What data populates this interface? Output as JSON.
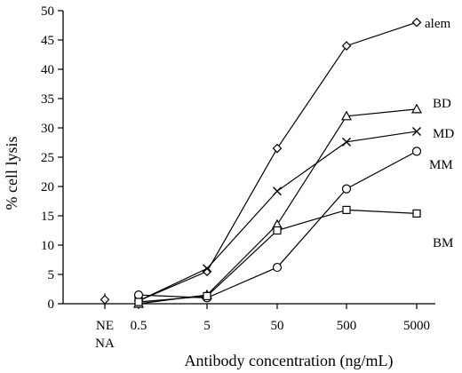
{
  "chart_data": {
    "type": "line",
    "xlabel": "Antibody concentration (ng/mL)",
    "ylabel": "% cell lysis",
    "ylim": [
      0,
      50
    ],
    "yticks": [
      0,
      5,
      10,
      15,
      20,
      25,
      30,
      35,
      40,
      45,
      50
    ],
    "categories": [
      "NE NA",
      "0.5",
      "5",
      "50",
      "500",
      "5000"
    ],
    "category_label_lines": [
      [
        "NE",
        "NA"
      ],
      [
        "0.5"
      ],
      [
        "5"
      ],
      [
        "50"
      ],
      [
        "500"
      ],
      [
        "5000"
      ]
    ],
    "grid": false,
    "legend": "inline labels at right end of each series",
    "series": [
      {
        "name": "alem",
        "marker": "diamond",
        "values": [
          null,
          0.5,
          5.5,
          26.5,
          44,
          48
        ]
      },
      {
        "name": "BD",
        "marker": "triangle",
        "values": [
          null,
          0,
          1.5,
          13.5,
          32,
          33.2
        ]
      },
      {
        "name": "MD",
        "marker": "x",
        "values": [
          null,
          0.5,
          6,
          19.2,
          27.6,
          29.4
        ]
      },
      {
        "name": "MM",
        "marker": "circle",
        "values": [
          null,
          1.5,
          1,
          6.2,
          19.6,
          26
        ]
      },
      {
        "name": "BM",
        "marker": "square",
        "values": [
          null,
          0.3,
          1.3,
          12.5,
          16,
          15.4
        ]
      }
    ],
    "control_point": {
      "category": "NE NA",
      "value": 0.7,
      "marker": "diamond"
    }
  }
}
